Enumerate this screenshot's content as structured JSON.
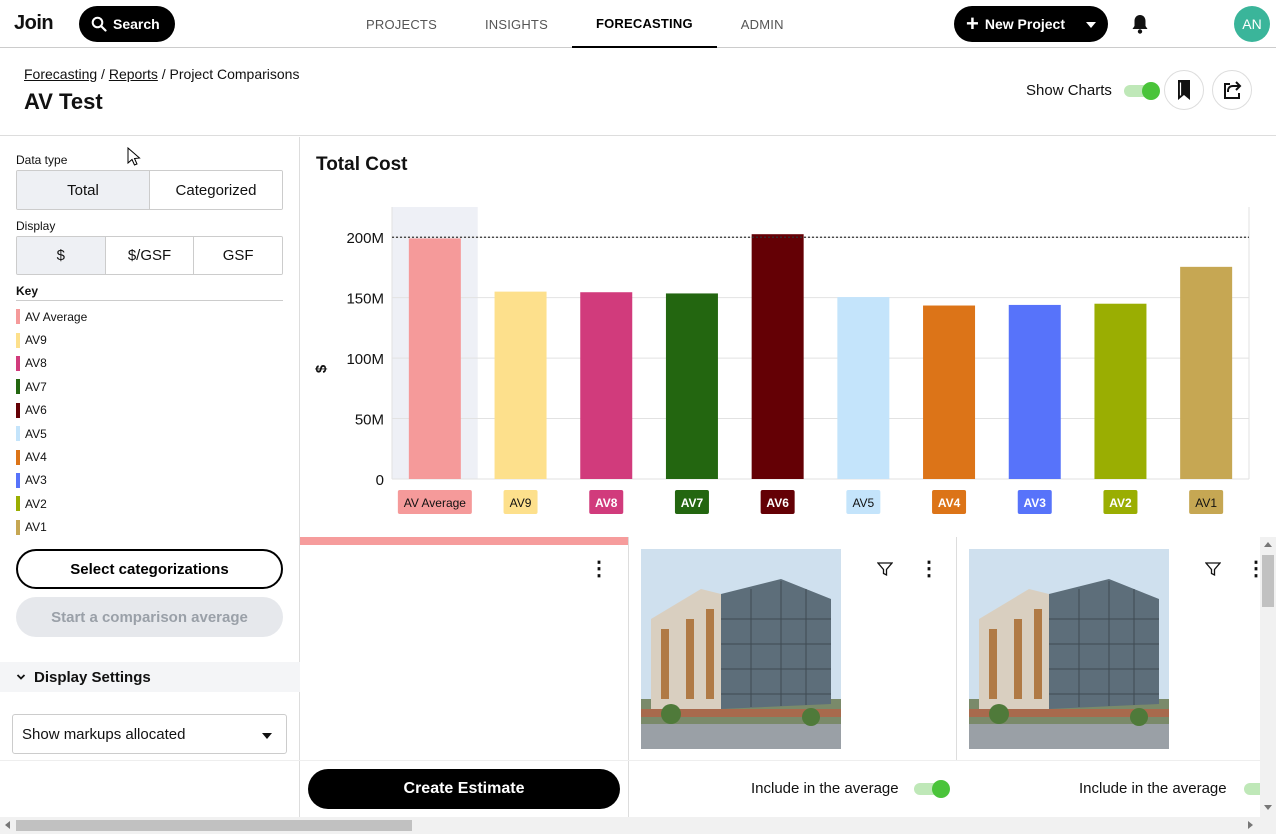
{
  "app": {
    "logo": "Join",
    "search_label": "Search"
  },
  "nav": [
    {
      "label": "PROJECTS",
      "active": false
    },
    {
      "label": "INSIGHTS",
      "active": false
    },
    {
      "label": "FORECASTING",
      "active": true
    },
    {
      "label": "ADMIN",
      "active": false
    }
  ],
  "topbar": {
    "new_project_label": "New Project",
    "avatar_initials": "AN"
  },
  "breadcrumb": {
    "part1": "Forecasting",
    "sep1": " / ",
    "part2": "Reports",
    "sep2": " / ",
    "part3": "Project Comparisons"
  },
  "page_title": "AV Test",
  "show_charts": {
    "label": "Show Charts",
    "on": true
  },
  "sidebar": {
    "data_type_label": "Data type",
    "data_type_options": [
      "Total",
      "Categorized"
    ],
    "data_type_selected": "Total",
    "display_label": "Display",
    "display_options": [
      "$",
      "$/GSF",
      "GSF"
    ],
    "display_selected": "$",
    "key_label": "Key",
    "key_items": [
      {
        "label": "AV Average",
        "color": "#f59a9a"
      },
      {
        "label": "AV9",
        "color": "#fde08c"
      },
      {
        "label": "AV8",
        "color": "#d13b7c"
      },
      {
        "label": "AV7",
        "color": "#236610"
      },
      {
        "label": "AV6",
        "color": "#640005"
      },
      {
        "label": "AV5",
        "color": "#c4e4fb"
      },
      {
        "label": "AV4",
        "color": "#dc7418"
      },
      {
        "label": "AV3",
        "color": "#5773fa"
      },
      {
        "label": "AV2",
        "color": "#9aae02"
      },
      {
        "label": "AV1",
        "color": "#c6a753"
      }
    ],
    "select_categorizations": "Select categorizations",
    "start_comparison": "Start a comparison average",
    "display_settings": "Display Settings",
    "markups_select": "Show markups allocated"
  },
  "chart_data": {
    "type": "bar",
    "title": "Total Cost",
    "ylabel": "$",
    "xlabel": "",
    "categories": [
      "AV Average",
      "AV9",
      "AV8",
      "AV7",
      "AV6",
      "AV5",
      "AV4",
      "AV3",
      "AV2",
      "AV1"
    ],
    "values": [
      199000000,
      155000000,
      154500000,
      153500000,
      202500000,
      150500000,
      143500000,
      144000000,
      145000000,
      175500000
    ],
    "colors": [
      "#f59a9a",
      "#fde08c",
      "#d13b7c",
      "#236610",
      "#640005",
      "#c4e4fb",
      "#dc7418",
      "#5773fa",
      "#9aae02",
      "#c6a753"
    ],
    "label_text_colors": [
      "#111",
      "#111",
      "#fff",
      "#fff",
      "#fff",
      "#111",
      "#fff",
      "#fff",
      "#fff",
      "#111"
    ],
    "ylim": [
      0,
      225000000
    ],
    "yticks": [
      0,
      50000000,
      100000000,
      150000000,
      200000000
    ],
    "ytick_labels": [
      "0",
      "50M",
      "100M",
      "150M",
      "200M"
    ],
    "reference_line": 200000000,
    "grid": true,
    "highlighted": "AV Average"
  },
  "footer": {
    "create_estimate": "Create Estimate",
    "include_label": "Include in the average"
  }
}
